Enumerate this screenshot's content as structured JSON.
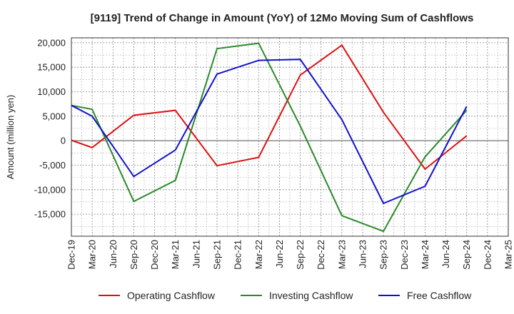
{
  "chart_data": {
    "type": "line",
    "title": "[9119]  Trend of Change in Amount (YoY) of 12Mo Moving Sum of Cashflows",
    "xlabel": "",
    "ylabel": "Amount (million yen)",
    "categories": [
      "Dec-19",
      "Mar-20",
      "Jun-20",
      "Sep-20",
      "Dec-20",
      "Mar-21",
      "Jun-21",
      "Sep-21",
      "Dec-21",
      "Mar-22",
      "Jun-22",
      "Sep-22",
      "Dec-22",
      "Mar-23",
      "Jun-23",
      "Sep-23",
      "Dec-23",
      "Mar-24",
      "Jun-24",
      "Sep-24",
      "Dec-24",
      "Mar-25"
    ],
    "ylim": [
      -19500,
      21000
    ],
    "yticks": [
      20000,
      15000,
      10000,
      5000,
      0,
      -5000,
      -10000,
      -15000
    ],
    "ytick_labels": [
      "20,000",
      "15,000",
      "10,000",
      "5,000",
      "0",
      "-5,000",
      "-10,000",
      "-15,000"
    ],
    "grid": true,
    "legend_position": "bottom",
    "series": [
      {
        "name": "Operating Cashflow",
        "color": "#dd1111",
        "values": [
          100,
          -1400,
          null,
          5200,
          null,
          6200,
          null,
          -5100,
          null,
          -3400,
          null,
          13400,
          null,
          19500,
          null,
          5800,
          null,
          -5800,
          null,
          1000,
          null,
          null
        ]
      },
      {
        "name": "Investing Cashflow",
        "color": "#2a8a2a",
        "values": [
          7200,
          6400,
          null,
          -12400,
          null,
          -8100,
          null,
          18800,
          null,
          19900,
          null,
          3000,
          null,
          -15300,
          null,
          -18500,
          null,
          -3300,
          null,
          6200,
          null,
          null
        ]
      },
      {
        "name": "Free Cashflow",
        "color": "#1111cc",
        "values": [
          7200,
          5000,
          null,
          -7300,
          null,
          -1900,
          null,
          13600,
          null,
          16400,
          null,
          16600,
          null,
          4300,
          null,
          -12800,
          null,
          -9300,
          null,
          7000,
          null,
          null
        ]
      }
    ]
  }
}
